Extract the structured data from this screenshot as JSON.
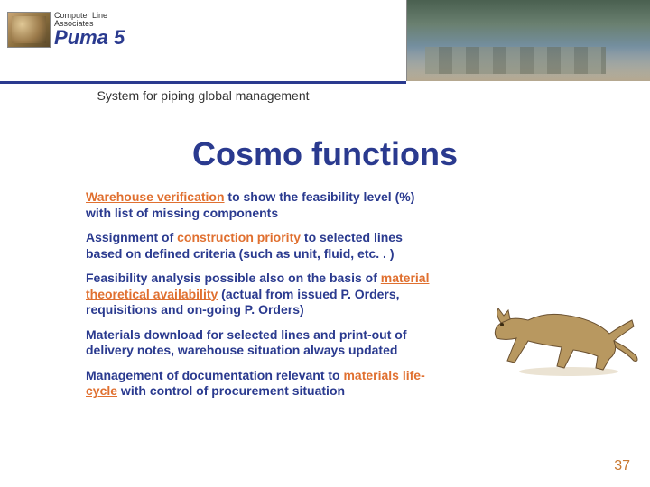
{
  "header": {
    "logo_small_top": "Computer Line",
    "logo_small_bottom": "Associates",
    "logo_main": "Puma 5",
    "subtitle": "System for piping global management"
  },
  "title": "Cosmo functions",
  "bullets": [
    {
      "segments": [
        {
          "t": "Warehouse verification",
          "hl": true
        },
        {
          "t": " to show the feasibility level (%) with list of missing components",
          "hl": false
        }
      ]
    },
    {
      "segments": [
        {
          "t": "Assignment of ",
          "hl": false
        },
        {
          "t": "construction priority",
          "hl": true
        },
        {
          "t": " to selected lines based on defined criteria (such as unit, fluid, etc. . )",
          "hl": false
        }
      ]
    },
    {
      "segments": [
        {
          "t": "Feasibility analysis possible also on the basis of ",
          "hl": false
        },
        {
          "t": "material theoretical availability",
          "hl": true
        },
        {
          "t": " (actual from issued P. Orders, requisitions and on-going P. Orders)",
          "hl": false
        }
      ]
    },
    {
      "segments": [
        {
          "t": "Materials download for selected lines and print-out of delivery notes, warehouse situation always updated",
          "hl": false
        }
      ]
    },
    {
      "segments": [
        {
          "t": "Management of documentation relevant to ",
          "hl": false
        },
        {
          "t": "materials life-cycle",
          "hl": true
        },
        {
          "t": " with control of procurement situation",
          "hl": false
        }
      ]
    }
  ],
  "page_number": "37",
  "colors": {
    "title": "#2a3a8f",
    "text": "#2a3a8f",
    "highlight": "#e07030",
    "line": "#2a3a8f",
    "pagenum": "#c97830"
  },
  "cat": {
    "body_fill": "#b89860",
    "body_stroke": "#6a5030",
    "shadow": "#d8c8a8"
  }
}
